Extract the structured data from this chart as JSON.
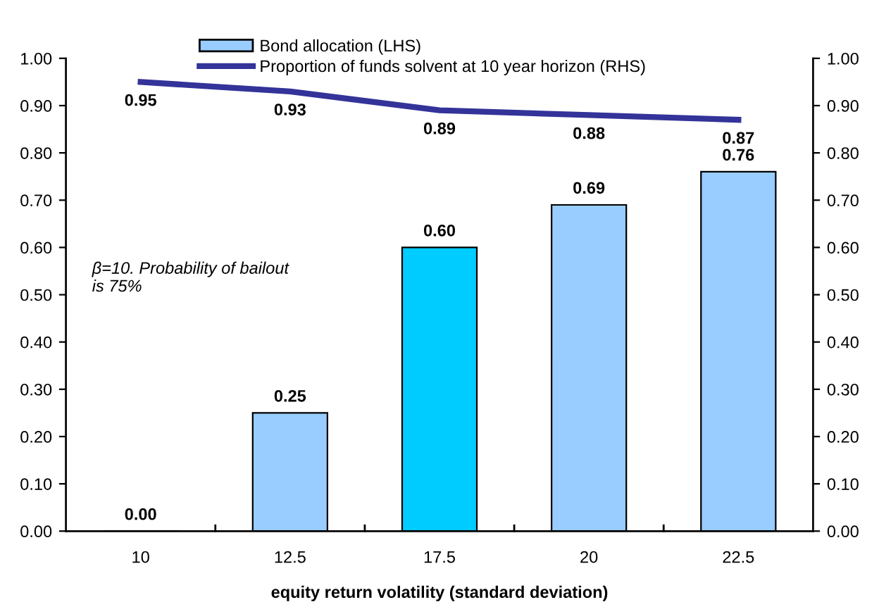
{
  "chart_data": {
    "type": "bar",
    "xlabel": "equity return volatility (standard deviation)",
    "categories": [
      "10",
      "12.5",
      "17.5",
      "20",
      "22.5"
    ],
    "series": [
      {
        "name": "Bond allocation (LHS)",
        "color": "#99ccff",
        "colors": [
          "#99ccff",
          "#99ccff",
          "#00ccff",
          "#99ccff",
          "#99ccff"
        ],
        "values": [
          0.0,
          0.25,
          0.6,
          0.69,
          0.76
        ],
        "value_labels": [
          "0.00",
          "0.25",
          "0.60",
          "0.69",
          "0.76"
        ]
      },
      {
        "name": "Proportion of funds solvent at 10 year horizon (RHS)",
        "type": "line",
        "axis": "y2",
        "color": "#333399",
        "values": [
          0.95,
          0.93,
          0.89,
          0.88,
          0.87
        ],
        "value_labels": [
          "0.95",
          "0.93",
          "0.89",
          "0.88",
          "0.87"
        ]
      }
    ],
    "ylim": [
      0,
      1
    ],
    "yticks": [
      {
        "value": 0,
        "label": "0.00"
      },
      {
        "value": 0.1,
        "label": "0.10"
      },
      {
        "value": 0.2,
        "label": "0.20"
      },
      {
        "value": 0.3,
        "label": "0.30"
      },
      {
        "value": 0.4,
        "label": "0.40"
      },
      {
        "value": 0.5,
        "label": "0.50"
      },
      {
        "value": 0.6,
        "label": "0.60"
      },
      {
        "value": 0.7,
        "label": "0.70"
      },
      {
        "value": 0.8,
        "label": "0.80"
      },
      {
        "value": 0.9,
        "label": "0.90"
      },
      {
        "value": 1,
        "label": "1.00"
      }
    ],
    "y2lim": [
      0,
      1
    ],
    "y2ticks": [
      {
        "value": 0,
        "label": "0.00"
      },
      {
        "value": 0.1,
        "label": "0.10"
      },
      {
        "value": 0.2,
        "label": "0.20"
      },
      {
        "value": 0.3,
        "label": "0.30"
      },
      {
        "value": 0.4,
        "label": "0.40"
      },
      {
        "value": 0.5,
        "label": "0.50"
      },
      {
        "value": 0.6,
        "label": "0.60"
      },
      {
        "value": 0.7,
        "label": "0.70"
      },
      {
        "value": 0.8,
        "label": "0.80"
      },
      {
        "value": 0.9,
        "label": "0.90"
      },
      {
        "value": 1,
        "label": "1.00"
      }
    ],
    "annotations": [
      "β=10. Probability of bailout\nis 75%"
    ],
    "legend": "top",
    "grid": false,
    "marker": "none",
    "line_style": "solid"
  }
}
